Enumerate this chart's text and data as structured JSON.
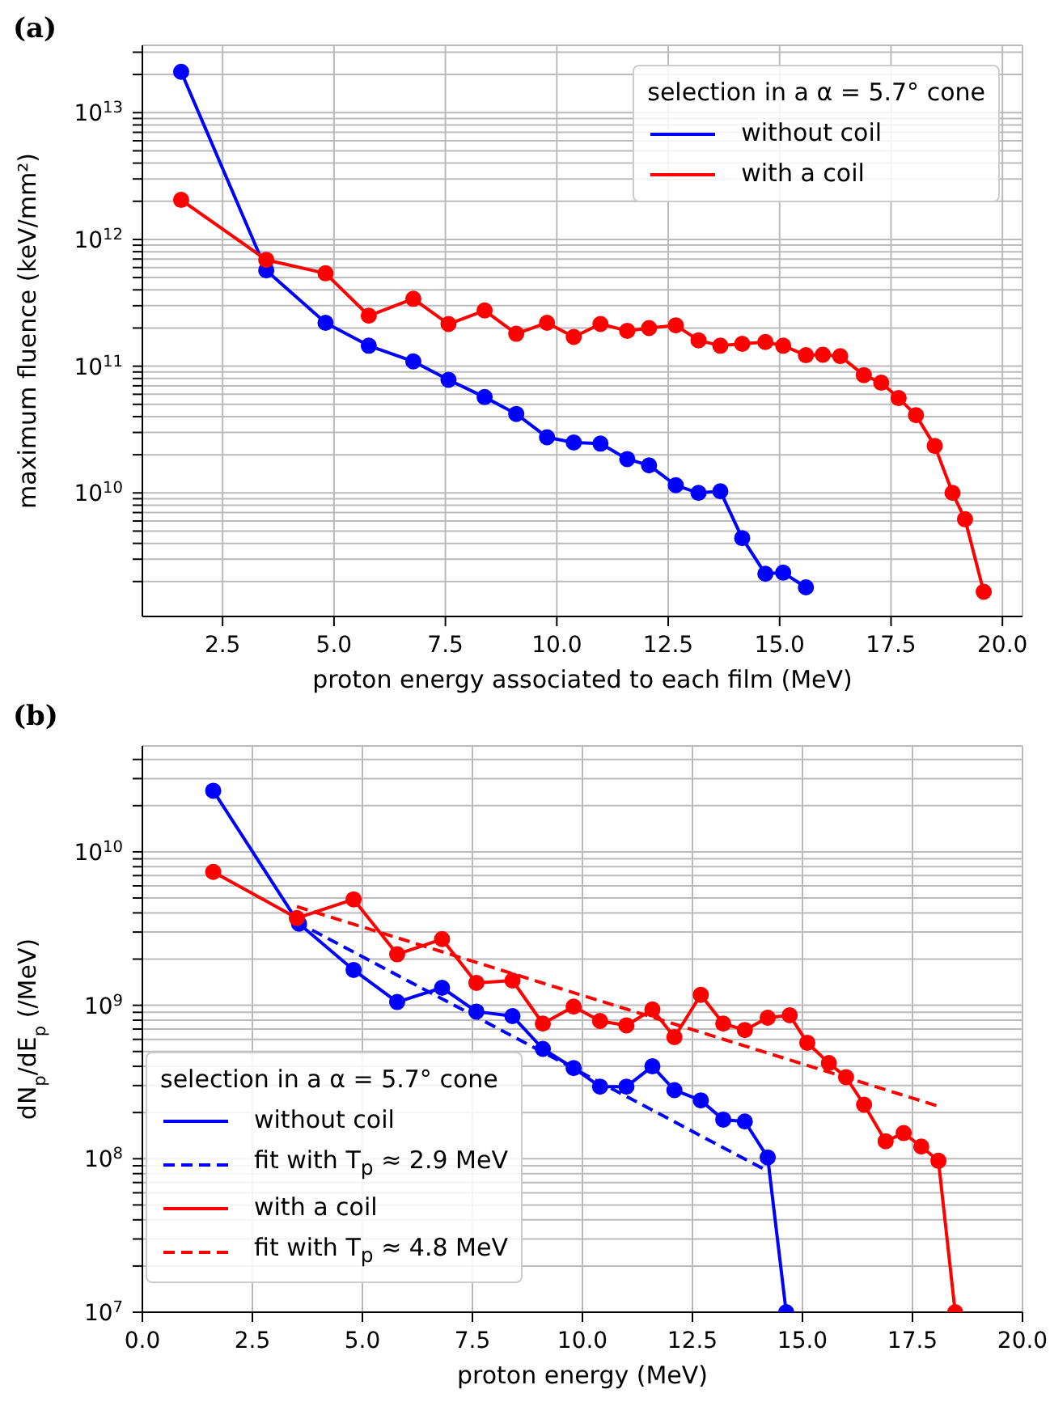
{
  "chart_data": [
    {
      "type": "line",
      "title": "(a)",
      "xlabel": "proton energy associated to each film (MeV)",
      "ylabel": "maximum fluence (keV/mm²)",
      "legend_title": "selection in a α = 5.7° cone",
      "log": "y",
      "grid": true,
      "legend": "top right",
      "marker": "circle",
      "line_style": "solid",
      "xlim": [
        0.7,
        20.45
      ],
      "xticks": [
        2.5,
        {
          "value": 5,
          "label": "5.0"
        },
        7.5,
        {
          "value": 10,
          "label": "10.0"
        },
        12.5,
        {
          "value": 15,
          "label": "15.0"
        },
        17.5,
        {
          "value": 20,
          "label": "20.0"
        }
      ],
      "ylim": [
        1060000000.0,
        34000000000000.0
      ],
      "yticks": [
        {
          "value": 2000000000.0,
          "label": null
        },
        {
          "value": 3000000000.0,
          "label": null
        },
        {
          "value": 4000000000.0,
          "label": null
        },
        {
          "value": 5000000000.0,
          "label": null
        },
        {
          "value": 6000000000.0,
          "label": null
        },
        {
          "value": 7000000000.0,
          "label": null
        },
        {
          "value": 8000000000.0,
          "label": null
        },
        {
          "value": 9000000000.0,
          "label": null
        },
        {
          "value": 10000000000.0,
          "label": "10$^{10}$"
        },
        {
          "value": 20000000000.0,
          "label": null
        },
        {
          "value": 30000000000.0,
          "label": null
        },
        {
          "value": 40000000000.0,
          "label": null
        },
        {
          "value": 50000000000.0,
          "label": null
        },
        {
          "value": 60000000000.0,
          "label": null
        },
        {
          "value": 70000000000.0,
          "label": null
        },
        {
          "value": 80000000000.0,
          "label": null
        },
        {
          "value": 90000000000.0,
          "label": null
        },
        {
          "value": 100000000000.0,
          "label": "10$^{11}$"
        },
        {
          "value": 200000000000.0,
          "label": null
        },
        {
          "value": 300000000000.0,
          "label": null
        },
        {
          "value": 400000000000.0,
          "label": null
        },
        {
          "value": 500000000000.0,
          "label": null
        },
        {
          "value": 600000000000.0,
          "label": null
        },
        {
          "value": 700000000000.0,
          "label": null
        },
        {
          "value": 800000000000.0,
          "label": null
        },
        {
          "value": 900000000000.0,
          "label": null
        },
        {
          "value": 1000000000000.0,
          "label": "10$^{12}$"
        },
        {
          "value": 2000000000000.0,
          "label": null
        },
        {
          "value": 3000000000000.0,
          "label": null
        },
        {
          "value": 4000000000000.0,
          "label": null
        },
        {
          "value": 5000000000000.0,
          "label": null
        },
        {
          "value": 6000000000000.0,
          "label": null
        },
        {
          "value": 7000000000000.0,
          "label": null
        },
        {
          "value": 8000000000000.0,
          "label": null
        },
        {
          "value": 9000000000000.0,
          "label": null
        },
        {
          "value": 10000000000000.0,
          "label": "10$^{13}$"
        },
        {
          "value": 20000000000000.0,
          "label": null
        },
        {
          "value": 30000000000000.0,
          "label": null
        }
      ],
      "series": [
        {
          "name": "without coil",
          "color": "#0000ff",
          "x": [
            1.57,
            3.48,
            4.81,
            5.78,
            6.78,
            7.57,
            8.38,
            9.09,
            9.78,
            10.38,
            10.98,
            11.58,
            12.07,
            12.67,
            13.18,
            13.67,
            14.16,
            14.68,
            15.08,
            15.59
          ],
          "values": [
            21000000000000.0,
            570000000000.0,
            220000000000.0,
            145000000000.0,
            109000000000.0,
            78000000000.0,
            57000000000.0,
            42000000000.0,
            27500000000.0,
            25000000000.0,
            24500000000.0,
            18500000000.0,
            16500000000.0,
            11500000000.0,
            10000000000.0,
            10300000000.0,
            4400000000.0,
            2300000000.0,
            2350000000.0,
            1800000000.0
          ]
        },
        {
          "name": "with a coil",
          "color": "#ff0000",
          "x": [
            1.57,
            3.48,
            4.81,
            5.78,
            6.78,
            7.57,
            8.38,
            9.09,
            9.78,
            10.38,
            10.98,
            11.58,
            12.07,
            12.67,
            13.18,
            13.67,
            14.16,
            14.68,
            15.08,
            15.59,
            15.97,
            16.36,
            16.89,
            17.28,
            17.67,
            18.06,
            18.48,
            18.88,
            19.16,
            19.58
          ],
          "values": [
            2050000000000.0,
            690000000000.0,
            540000000000.0,
            250000000000.0,
            340000000000.0,
            215000000000.0,
            275000000000.0,
            180000000000.0,
            220000000000.0,
            170000000000.0,
            215000000000.0,
            190000000000.0,
            200000000000.0,
            210000000000.0,
            160000000000.0,
            145000000000.0,
            150000000000.0,
            155000000000.0,
            145000000000.0,
            122000000000.0,
            123000000000.0,
            120000000000.0,
            85000000000.0,
            74000000000.0,
            56000000000.0,
            41000000000.0,
            23500000000.0,
            10000000000.0,
            6200000000.0,
            1660000000.0
          ]
        }
      ]
    },
    {
      "type": "line",
      "title": "(b)",
      "xlabel": "proton energy (MeV)",
      "ylabel": "dN$_{p}$/dE$_{p}$ (/MeV)",
      "legend_title": "selection in a α = 5.7° cone",
      "log": "y",
      "grid": true,
      "legend": "bottom left",
      "marker": "circle",
      "line_style": "solid",
      "xlim": [
        0,
        20
      ],
      "xticks": [
        {
          "value": 0,
          "label": "0.0"
        },
        2.5,
        {
          "value": 5,
          "label": "5.0"
        },
        7.5,
        {
          "value": 10,
          "label": "10.0"
        },
        12.5,
        {
          "value": 15,
          "label": "15.0"
        },
        17.5,
        {
          "value": 20,
          "label": "20.0"
        }
      ],
      "ylim": [
        10000000.0,
        49000000000.0
      ],
      "yticks": [
        {
          "value": 10000000.0,
          "label": "10$^{7}$"
        },
        {
          "value": 20000000.0,
          "label": null
        },
        {
          "value": 30000000.0,
          "label": null
        },
        {
          "value": 40000000.0,
          "label": null
        },
        {
          "value": 50000000.0,
          "label": null
        },
        {
          "value": 60000000.0,
          "label": null
        },
        {
          "value": 70000000.0,
          "label": null
        },
        {
          "value": 80000000.0,
          "label": null
        },
        {
          "value": 90000000.0,
          "label": null
        },
        {
          "value": 100000000.0,
          "label": "10$^{8}$"
        },
        {
          "value": 200000000.0,
          "label": null
        },
        {
          "value": 300000000.0,
          "label": null
        },
        {
          "value": 400000000.0,
          "label": null
        },
        {
          "value": 500000000.0,
          "label": null
        },
        {
          "value": 600000000.0,
          "label": null
        },
        {
          "value": 700000000.0,
          "label": null
        },
        {
          "value": 800000000.0,
          "label": null
        },
        {
          "value": 900000000.0,
          "label": null
        },
        {
          "value": 1000000000.0,
          "label": "10$^{9}$"
        },
        {
          "value": 2000000000.0,
          "label": null
        },
        {
          "value": 3000000000.0,
          "label": null
        },
        {
          "value": 4000000000.0,
          "label": null
        },
        {
          "value": 5000000000.0,
          "label": null
        },
        {
          "value": 6000000000.0,
          "label": null
        },
        {
          "value": 7000000000.0,
          "label": null
        },
        {
          "value": 8000000000.0,
          "label": null
        },
        {
          "value": 9000000000.0,
          "label": null
        },
        {
          "value": 10000000000.0,
          "label": "10$^{10}$"
        },
        {
          "value": 20000000000.0,
          "label": null
        },
        {
          "value": 30000000000.0,
          "label": null
        },
        {
          "value": 40000000000.0,
          "label": null
        }
      ],
      "series": [
        {
          "name": "without coil",
          "color": "#0000ff",
          "x": [
            1.61,
            3.56,
            4.8,
            5.79,
            6.81,
            7.59,
            8.41,
            9.1,
            9.8,
            10.4,
            11.0,
            11.59,
            12.09,
            12.69,
            13.2,
            13.69,
            14.21,
            14.63
          ],
          "values": [
            25000000000.0,
            3400000000.0,
            1700000000.0,
            1050000000.0,
            1300000000.0,
            910000000.0,
            850000000.0,
            520000000.0,
            390000000.0,
            295000000.0,
            295000000.0,
            400000000.0,
            280000000.0,
            240000000.0,
            180000000.0,
            175000000.0,
            102000000.0,
            10000000.0
          ]
        },
        {
          "name": "fit with T$_{p}$ ≈ 2.9 MeV",
          "color": "#0000ff",
          "marker": "none",
          "line_style": "dashed",
          "x": [
            3.5,
            14.21
          ],
          "values": [
            3500000000.0,
            83000000.0
          ]
        },
        {
          "name": "with a coil",
          "color": "#ff0000",
          "x": [
            1.61,
            3.51,
            4.8,
            5.79,
            6.81,
            7.59,
            8.41,
            9.1,
            9.8,
            10.4,
            11.0,
            11.59,
            12.09,
            12.69,
            13.2,
            13.69,
            14.21,
            14.71,
            15.11,
            15.6,
            15.99,
            16.4,
            16.89,
            17.3,
            17.7,
            18.09,
            18.47
          ],
          "values": [
            7400000000.0,
            3700000000.0,
            4900000000.0,
            2150000000.0,
            2700000000.0,
            1400000000.0,
            1450000000.0,
            760000000.0,
            980000000.0,
            790000000.0,
            740000000.0,
            940000000.0,
            620000000.0,
            1170000000.0,
            760000000.0,
            690000000.0,
            830000000.0,
            860000000.0,
            570000000.0,
            420000000.0,
            340000000.0,
            225000000.0,
            130000000.0,
            147000000.0,
            120000000.0,
            97000000.0,
            10000000.0
          ]
        },
        {
          "name": "fit with T$_{p}$ ≈ 4.8 MeV",
          "color": "#ff0000",
          "marker": "none",
          "line_style": "dashed",
          "x": [
            3.51,
            18.09
          ],
          "values": [
            4400000000.0,
            220000000.0
          ]
        }
      ]
    }
  ]
}
